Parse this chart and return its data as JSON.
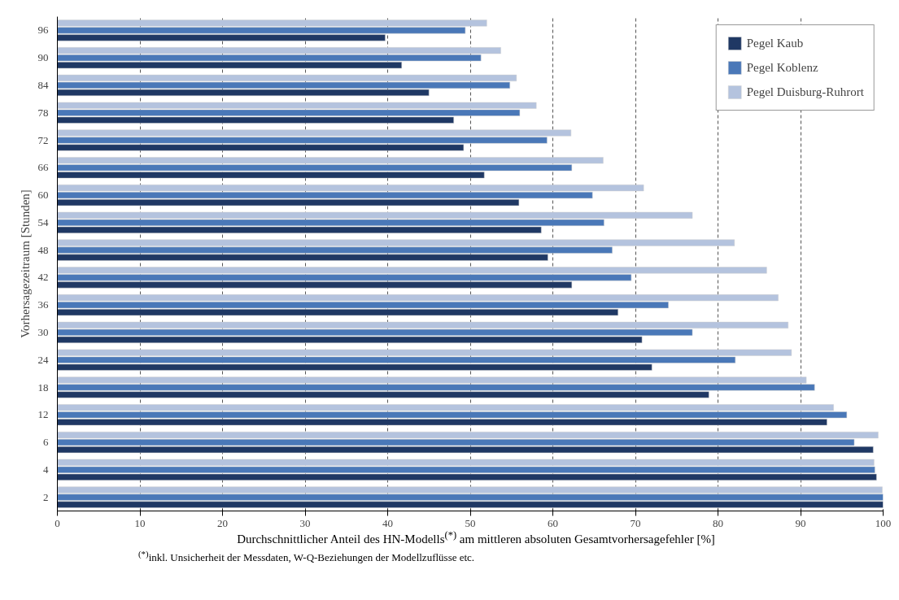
{
  "chart_data": {
    "type": "bar",
    "orientation": "horizontal",
    "categories": [
      "96",
      "90",
      "84",
      "78",
      "72",
      "66",
      "60",
      "54",
      "48",
      "42",
      "36",
      "30",
      "24",
      "18",
      "12",
      "6",
      "4",
      "2"
    ],
    "series": [
      {
        "name": "Pegel Kaub",
        "color": "#1f3864",
        "values": [
          39.7,
          41.7,
          45.0,
          48.0,
          49.2,
          51.7,
          55.9,
          58.6,
          59.4,
          62.3,
          67.9,
          70.8,
          72.0,
          78.9,
          93.2,
          98.8,
          99.2,
          100
        ]
      },
      {
        "name": "Pegel Koblenz",
        "color": "#4a78b8",
        "values": [
          49.4,
          51.3,
          54.8,
          56.0,
          59.3,
          62.3,
          64.8,
          66.2,
          67.2,
          69.5,
          74.0,
          76.9,
          82.1,
          91.7,
          95.6,
          96.5,
          99.0,
          100
        ]
      },
      {
        "name": "Pegel Duisburg-Ruhrort",
        "color": "#b4c3de",
        "values": [
          52.0,
          53.7,
          55.6,
          58.0,
          62.2,
          66.1,
          71.0,
          76.9,
          82.0,
          85.9,
          87.3,
          88.5,
          88.9,
          90.7,
          94.0,
          99.4,
          98.9,
          99.9
        ]
      }
    ],
    "xlim": [
      0,
      100
    ],
    "xticks": [
      0,
      10,
      20,
      30,
      40,
      50,
      60,
      70,
      80,
      90,
      100
    ],
    "xlabel": "Durchschnittlicher Anteil des HN-Modells$^{(*)}$ am mittleren absoluten Gesamtvorhersagefehler [%]",
    "ylabel": "Vorhersagezeitraum [Stunden]",
    "annotations": [
      "$^{(*)}$inkl. Unsicherheit der Messdaten, W-Q-Beziehungen der Modellzuflüsse etc."
    ],
    "grid": "x",
    "legend": "top right"
  }
}
